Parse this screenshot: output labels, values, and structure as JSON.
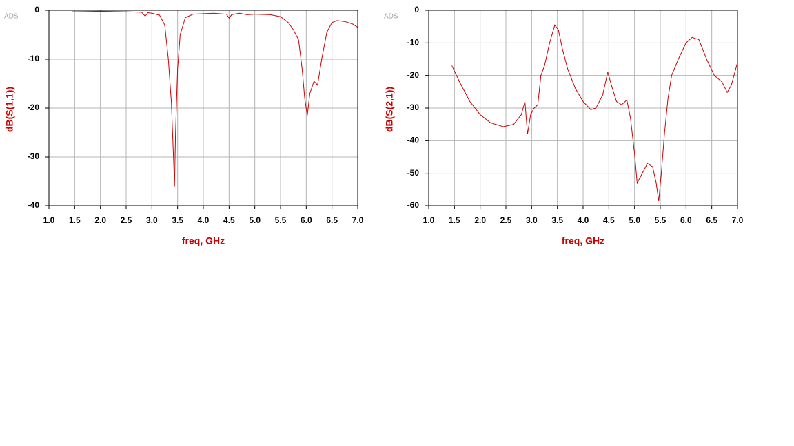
{
  "chart_data": [
    {
      "type": "line",
      "watermark": "ADS",
      "xlabel": "freq, GHz",
      "ylabel": "dB(S(1,1))",
      "color": "#cc0000",
      "grid": true,
      "xlim": [
        1,
        7
      ],
      "ylim": [
        -40,
        0
      ],
      "xticks": [
        {
          "value": 1,
          "label": "1.0"
        },
        1.5,
        {
          "value": 2,
          "label": "2.0"
        },
        2.5,
        {
          "value": 3,
          "label": "3.0"
        },
        3.5,
        {
          "value": 4,
          "label": "4.0"
        },
        4.5,
        {
          "value": 5,
          "label": "5.0"
        },
        5.5,
        {
          "value": 6,
          "label": "6.0"
        },
        6.5,
        {
          "value": 7,
          "label": "7.0"
        }
      ],
      "yticks": [
        0,
        -10,
        -20,
        -30,
        -40
      ],
      "x": [
        1.45,
        2.0,
        2.5,
        2.8,
        2.87,
        2.92,
        3.0,
        3.15,
        3.25,
        3.32,
        3.38,
        3.42,
        3.44,
        3.46,
        3.5,
        3.55,
        3.65,
        3.8,
        4.2,
        4.45,
        4.5,
        4.55,
        4.7,
        4.85,
        5.0,
        5.3,
        5.5,
        5.65,
        5.75,
        5.85,
        5.92,
        5.97,
        6.02,
        6.07,
        6.15,
        6.22,
        6.3,
        6.4,
        6.5,
        6.6,
        6.75,
        6.9,
        7.0
      ],
      "values": [
        -0.3,
        -0.2,
        -0.3,
        -0.4,
        -1.2,
        -0.5,
        -0.6,
        -1.0,
        -3,
        -10,
        -19,
        -30,
        -36,
        -25,
        -12,
        -5,
        -1.5,
        -0.8,
        -0.6,
        -0.8,
        -1.6,
        -0.9,
        -0.6,
        -0.9,
        -0.8,
        -0.9,
        -1.3,
        -2.5,
        -4,
        -6,
        -12,
        -18,
        -21.5,
        -17,
        -14.5,
        -15.3,
        -10,
        -4.5,
        -2.5,
        -2.1,
        -2.3,
        -2.8,
        -3.5
      ]
    },
    {
      "type": "line",
      "watermark": "ADS",
      "xlabel": "freq, GHz",
      "ylabel": "dB(S(2,1))",
      "color": "#cc0000",
      "grid": true,
      "xlim": [
        1,
        7
      ],
      "ylim": [
        -60,
        0
      ],
      "xticks": [
        {
          "value": 1,
          "label": "1.0"
        },
        1.5,
        {
          "value": 2,
          "label": "2.0"
        },
        2.5,
        {
          "value": 3,
          "label": "3.0"
        },
        3.5,
        {
          "value": 4,
          "label": "4.0"
        },
        4.5,
        {
          "value": 5,
          "label": "5.0"
        },
        5.5,
        {
          "value": 6,
          "label": "6.0"
        },
        6.5,
        {
          "value": 7,
          "label": "7.0"
        }
      ],
      "yticks": [
        0,
        -10,
        -20,
        -30,
        -40,
        -50,
        -60
      ],
      "x": [
        1.45,
        1.6,
        1.8,
        2.0,
        2.2,
        2.45,
        2.65,
        2.8,
        2.87,
        2.92,
        2.98,
        3.05,
        3.12,
        3.18,
        3.25,
        3.35,
        3.45,
        3.52,
        3.6,
        3.7,
        3.85,
        4.0,
        4.15,
        4.25,
        4.38,
        4.48,
        4.55,
        4.65,
        4.75,
        4.85,
        4.92,
        5.0,
        5.05,
        5.15,
        5.25,
        5.35,
        5.42,
        5.47,
        5.52,
        5.58,
        5.65,
        5.72,
        5.85,
        6.0,
        6.12,
        6.25,
        6.4,
        6.55,
        6.7,
        6.8,
        6.88,
        7.0
      ],
      "values": [
        -17,
        -22,
        -28,
        -32,
        -34.5,
        -35.7,
        -35,
        -32,
        -28,
        -38,
        -32,
        -30,
        -29,
        -20,
        -17,
        -10,
        -4.5,
        -6,
        -12,
        -18,
        -24,
        -28,
        -30.5,
        -30,
        -26,
        -19,
        -23,
        -28,
        -29,
        -27.5,
        -33,
        -44,
        -53,
        -50,
        -47,
        -48,
        -53,
        -58.5,
        -50,
        -38,
        -27,
        -20,
        -15,
        -10,
        -8.3,
        -9,
        -15,
        -20,
        -22,
        -25.2,
        -23,
        -16
      ]
    }
  ]
}
